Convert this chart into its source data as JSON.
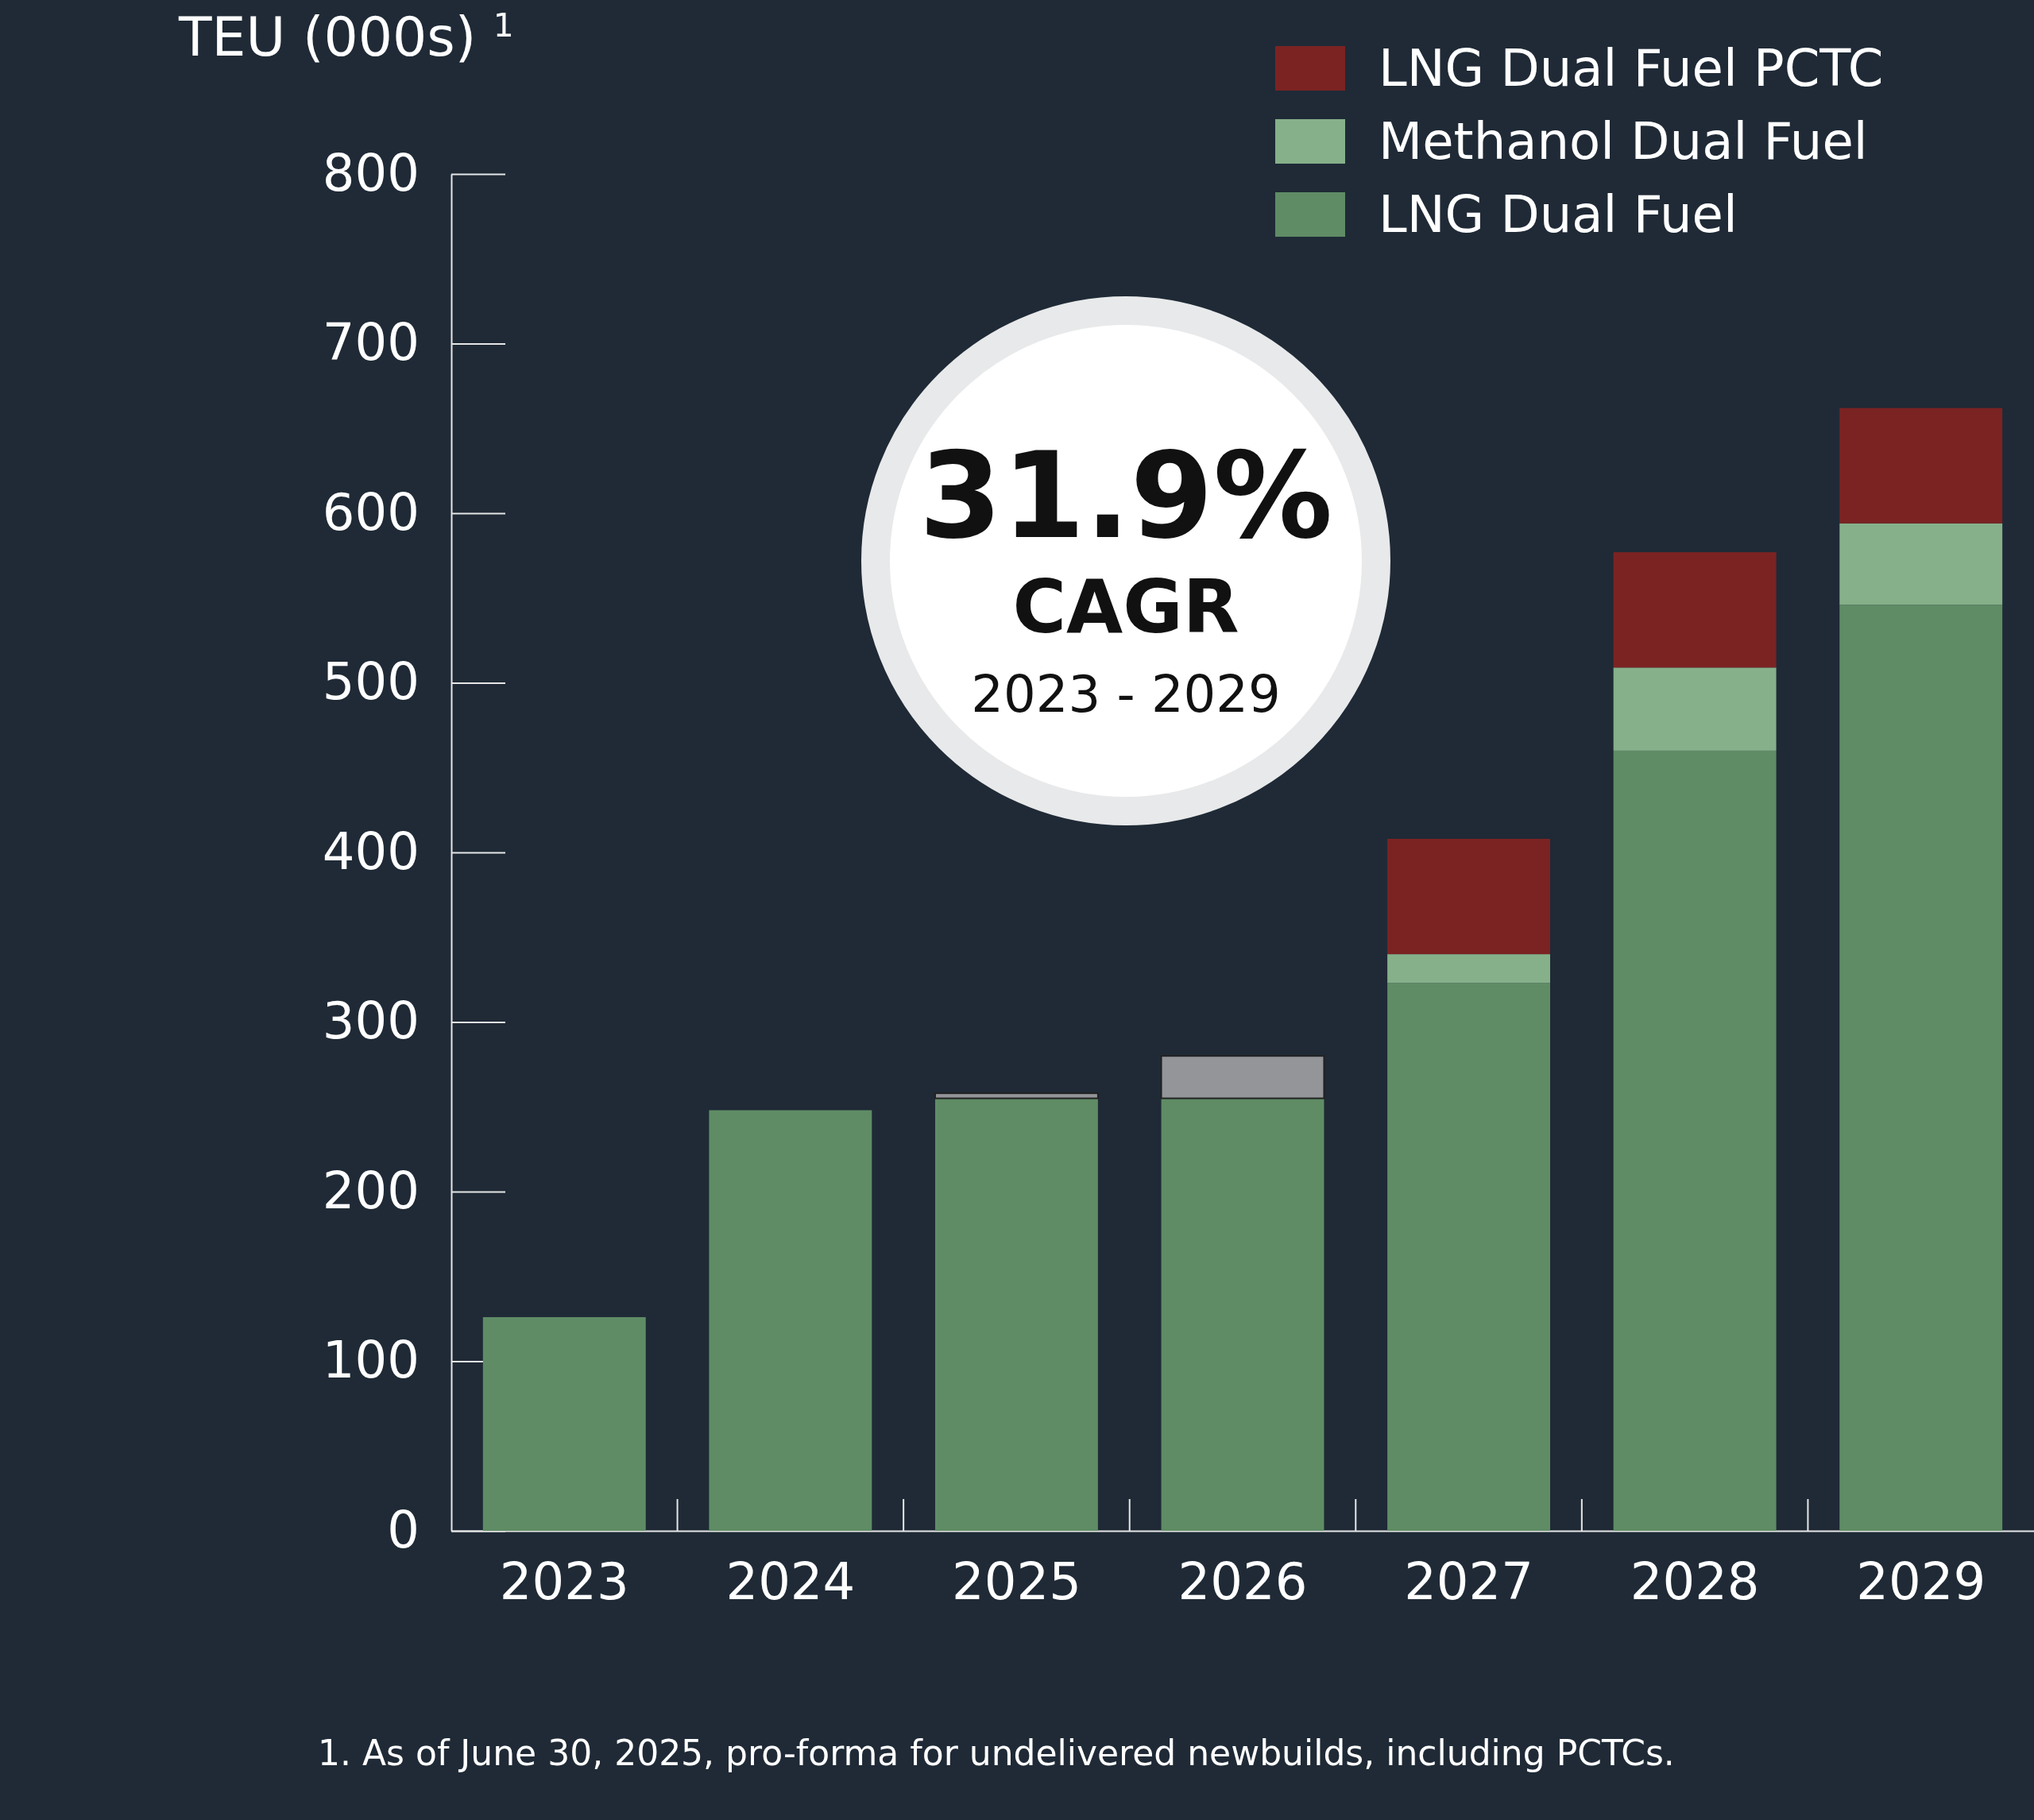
{
  "chart_data": {
    "type": "bar",
    "stacked": true,
    "ylabel": "TEU (000s) $^{1}$",
    "categories": [
      "2023",
      "2024",
      "2025",
      "2026",
      "2027",
      "2028",
      "2029"
    ],
    "series": [
      {
        "name": "LNG Dual Fuel",
        "color": "#5f8c65",
        "values": [
          126,
          248,
          255,
          255,
          323,
          460,
          546
        ]
      },
      {
        "name": "Methanol Dual Fuel",
        "color": "#86b08a",
        "values": [
          0,
          0,
          0,
          0,
          17,
          49,
          48
        ]
      },
      {
        "name": "LNG Dual Fuel PCTC",
        "color": "#7b2323",
        "values": [
          0,
          0,
          0,
          0,
          68,
          68,
          68
        ]
      },
      {
        "color": "#939598",
        "values": [
          0,
          0,
          3,
          25,
          0,
          0,
          0
        ]
      }
    ],
    "ylim": [
      0,
      800
    ],
    "yticks": [
      0,
      100,
      200,
      300,
      400,
      500,
      600,
      700,
      800
    ],
    "grid": false,
    "legend": "top right",
    "annotations": [
      "31.9%",
      "CAGR",
      "2023 - 2029",
      "1.  As of June 30, 2025, pro-forma for undelivered newbuilds, including PCTCs."
    ]
  }
}
